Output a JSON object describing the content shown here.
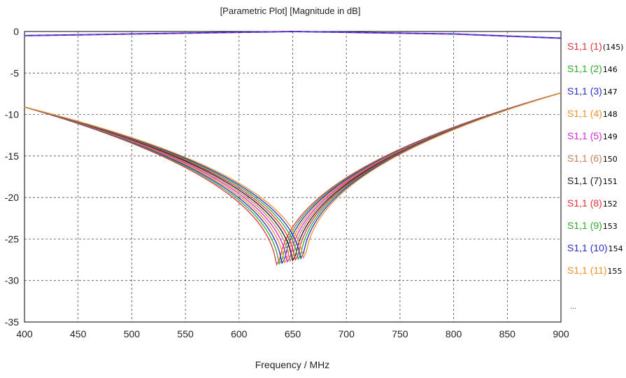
{
  "chart_data": {
    "type": "line",
    "title": "[Parametric Plot] [Magnitude in dB]",
    "xlabel": "Frequency / MHz",
    "ylabel": "",
    "xlim": [
      400,
      900
    ],
    "ylim": [
      -35,
      0
    ],
    "xticks": [
      400,
      450,
      500,
      550,
      600,
      650,
      700,
      750,
      800,
      850,
      900
    ],
    "yticks": [
      0,
      -5,
      -10,
      -15,
      -20,
      -25,
      -30,
      -35
    ],
    "grid": true,
    "legend_position": "right",
    "legend_more": "...",
    "top_trace": {
      "x": [
        400,
        500,
        600,
        650,
        700,
        800,
        900
      ],
      "y": [
        -0.5,
        -0.3,
        -0.1,
        0.0,
        -0.1,
        -0.3,
        -0.8
      ],
      "color": "#3030c0"
    },
    "series": [
      {
        "name": "S1,1 (1)",
        "param": "(145)",
        "color": "#e8303a",
        "resonance_x": 636,
        "min_y": -30.2
      },
      {
        "name": "S1,1 (2)",
        "param": "146",
        "color": "#2eaa2e",
        "resonance_x": 638.5,
        "min_y": -30.1
      },
      {
        "name": "S1,1 (3)",
        "param": "147",
        "color": "#2a2ac8",
        "resonance_x": 641,
        "min_y": -30.0
      },
      {
        "name": "S1,1 (4)",
        "param": "148",
        "color": "#f0922a",
        "resonance_x": 643.5,
        "min_y": -29.9
      },
      {
        "name": "S1,1 (5)",
        "param": "149",
        "color": "#d22ad2",
        "resonance_x": 646,
        "min_y": -29.8
      },
      {
        "name": "S1,1 (6)",
        "param": "150",
        "color": "#c8825a",
        "resonance_x": 648.5,
        "min_y": -29.7
      },
      {
        "name": "S1,1 (7)",
        "param": "151",
        "color": "#1a1a1a",
        "resonance_x": 651,
        "min_y": -29.6
      },
      {
        "name": "S1,1 (8)",
        "param": "152",
        "color": "#e8303a",
        "resonance_x": 653.5,
        "min_y": -29.5
      },
      {
        "name": "S1,1 (9)",
        "param": "153",
        "color": "#2eaa2e",
        "resonance_x": 656,
        "min_y": -29.4
      },
      {
        "name": "S1,1 (10)",
        "param": "154",
        "color": "#2a2ac8",
        "resonance_x": 658.5,
        "min_y": -29.3
      },
      {
        "name": "S1,1 (11)",
        "param": "155",
        "color": "#f0922a",
        "resonance_x": 661,
        "min_y": -29.2
      }
    ]
  }
}
